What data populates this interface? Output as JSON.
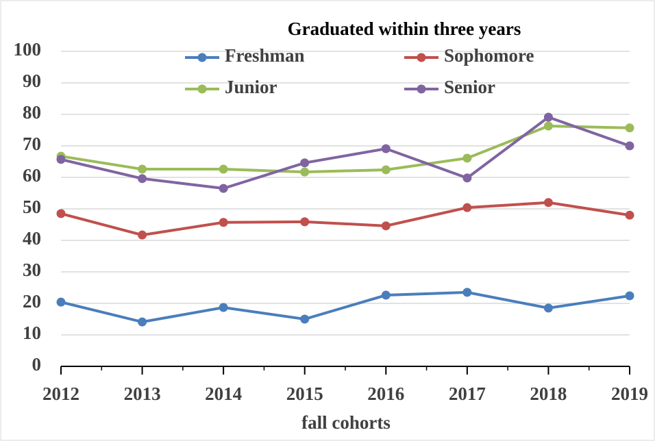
{
  "chart_data": {
    "type": "line",
    "title": "Graduated within three years",
    "x_label": "fall cohorts",
    "categories": [
      "2012",
      "2013",
      "2014",
      "2015",
      "2016",
      "2017",
      "2018",
      "2019"
    ],
    "series": [
      {
        "name": "Freshman",
        "color": "#4a7ebb",
        "values": [
          20.4,
          14.1,
          18.7,
          15,
          22.6,
          23.5,
          18.5,
          22.4
        ]
      },
      {
        "name": "Sophomore",
        "color": "#c0504d",
        "values": [
          48.5,
          41.7,
          45.7,
          45.9,
          44.6,
          50.4,
          52,
          48
        ]
      },
      {
        "name": "Junior",
        "color": "#9bbb59",
        "values": [
          66.7,
          62.6,
          62.6,
          61.7,
          62.4,
          66.1,
          76.3,
          75.7
        ]
      },
      {
        "name": "Senior",
        "color": "#8064a2",
        "values": [
          65.7,
          59.6,
          56.5,
          64.6,
          69.1,
          59.8,
          79.1,
          70
        ]
      }
    ],
    "ylim": [
      0,
      100
    ],
    "yticks": [
      0,
      10,
      20,
      30,
      40,
      50,
      60,
      70,
      80,
      90,
      100
    ],
    "grid": true
  }
}
